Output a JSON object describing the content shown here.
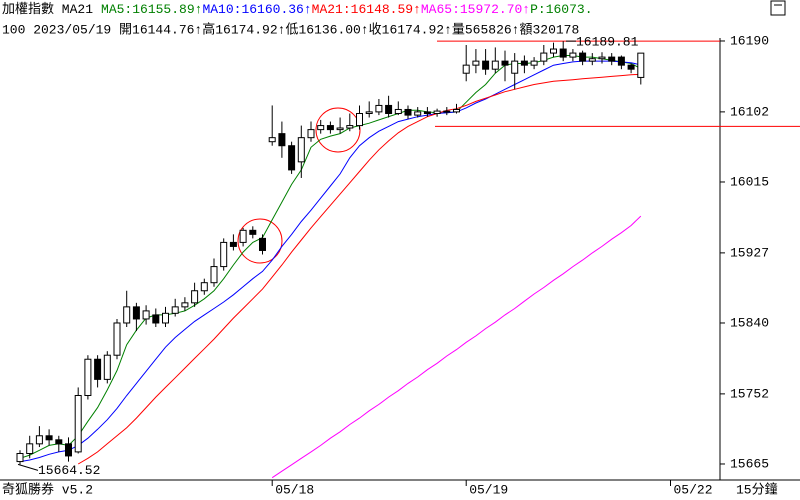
{
  "chart_data": {
    "type": "candlestick",
    "title": "加權指數 MA21",
    "indicators": [
      {
        "text": "MA5:16155.89↑",
        "color": "#008000"
      },
      {
        "text": "MA10:16160.36↑",
        "color": "#0000ff"
      },
      {
        "text": "MA21:16148.59↑",
        "color": "#ff0000"
      },
      {
        "text": "MA65:15972.70↑",
        "color": "#ff00ff"
      },
      {
        "text": "P:16073.",
        "color": "#008000"
      }
    ],
    "info": "100 2023/05/19 開16144.76↑高16174.92↑低16136.00↑收16174.92↑量565826↑額320178",
    "footer_left": "奇狐勝券 v5.2",
    "footer_right": "15分鐘",
    "x_end_label": "05/22",
    "categories": [
      null,
      null,
      null,
      null,
      null,
      null,
      null,
      null,
      null,
      null,
      null,
      null,
      null,
      null,
      null,
      null,
      null,
      null,
      null,
      null,
      null,
      null,
      null,
      null,
      null,
      null,
      "05/18",
      null,
      null,
      null,
      null,
      null,
      null,
      null,
      null,
      null,
      null,
      null,
      null,
      null,
      null,
      null,
      null,
      null,
      null,
      null,
      "05/19",
      null,
      null,
      null,
      null,
      null,
      null,
      null,
      null,
      null,
      null,
      null,
      null,
      null,
      null,
      null,
      null,
      null,
      null
    ],
    "open": [
      15668,
      15678,
      15690,
      15700,
      15695,
      15690,
      15680,
      15750,
      15795,
      15770,
      15800,
      15840,
      15860,
      15845,
      15850,
      15840,
      15852,
      15860,
      15865,
      15880,
      15890,
      15910,
      15940,
      15940,
      15955,
      15945,
      16065,
      16075,
      16060,
      16040,
      16070,
      16080,
      16085,
      16080,
      16082,
      16085,
      16100,
      16102,
      16110,
      16100,
      16105,
      16098,
      16102,
      16100,
      16103,
      16102,
      16150,
      16160,
      16165,
      16155,
      16165,
      16150,
      16165,
      16160,
      16165,
      16175,
      16180,
      16170,
      16175,
      16165,
      16168,
      16170,
      16170,
      16160,
      16144.76
    ],
    "high": [
      15682,
      15700,
      15712,
      15708,
      15700,
      15698,
      15760,
      15800,
      15800,
      15805,
      15845,
      15880,
      15865,
      15862,
      15858,
      15860,
      15870,
      15872,
      15890,
      15895,
      15920,
      15945,
      15950,
      15958,
      15960,
      15950,
      16110,
      16090,
      16065,
      16085,
      16090,
      16092,
      16090,
      16095,
      16100,
      16110,
      16115,
      16118,
      16122,
      16115,
      16110,
      16108,
      16108,
      16106,
      16108,
      16112,
      16185,
      16180,
      16180,
      16182,
      16178,
      16175,
      16172,
      16170,
      16185,
      16188,
      16189.81,
      16180,
      16178,
      16175,
      16176,
      16175,
      16172,
      16162,
      16174.92
    ],
    "low": [
      15664.52,
      15672,
      15686,
      15688,
      15680,
      15668,
      15678,
      15745,
      15760,
      15765,
      15795,
      15835,
      15830,
      15838,
      15835,
      15835,
      15848,
      15855,
      15860,
      15875,
      15885,
      15905,
      15930,
      15935,
      15945,
      15925,
      16060,
      16045,
      16025,
      16020,
      16065,
      16075,
      16075,
      16075,
      16078,
      16080,
      16095,
      16098,
      16095,
      16098,
      16093,
      16095,
      16096,
      16096,
      16098,
      16100,
      16140,
      16150,
      16148,
      16150,
      16140,
      16130,
      16150,
      16155,
      16160,
      16170,
      16165,
      16165,
      16160,
      16160,
      16162,
      16160,
      16155,
      16150,
      16136
    ],
    "close": [
      15678,
      15690,
      15700,
      15695,
      15690,
      15675,
      15750,
      15795,
      15770,
      15800,
      15840,
      15860,
      15845,
      15855,
      15840,
      15852,
      15860,
      15865,
      15880,
      15890,
      15910,
      15940,
      15935,
      15955,
      15950,
      15930,
      16070,
      16060,
      16030,
      16070,
      16080,
      16085,
      16080,
      16082,
      16085,
      16100,
      16102,
      16110,
      16100,
      16105,
      16098,
      16102,
      16100,
      16103,
      16102,
      16105,
      16160,
      16165,
      16155,
      16165,
      16160,
      16165,
      16160,
      16165,
      16175,
      16180,
      16170,
      16175,
      16165,
      16168,
      16170,
      16165,
      16160,
      16155,
      16174.92
    ],
    "series": [
      {
        "name": "MA5",
        "color": "#008000",
        "values": [
          15672,
          15676,
          15682,
          15688,
          15690,
          15688,
          15700,
          15718,
          15735,
          15757,
          15781,
          15813,
          15831,
          15846,
          15850,
          15850,
          15852,
          15855,
          15862,
          15870,
          15880,
          15895,
          15912,
          15928,
          15940,
          15946,
          15968,
          15990,
          16012,
          16030,
          16058,
          16068,
          16072,
          16075,
          16082,
          16085,
          16088,
          16092,
          16096,
          16100,
          16104,
          16104,
          16102,
          16101,
          16101,
          16102,
          16114,
          16126,
          16136,
          16150,
          16160,
          16162,
          16162,
          16163,
          16166,
          16170,
          16172,
          16172,
          16170,
          16170,
          16168,
          16166,
          16164,
          16162,
          16155.89
        ]
      },
      {
        "name": "MA10",
        "color": "#0000ff",
        "values": [
          15668,
          15670,
          15673,
          15677,
          15680,
          15682,
          15688,
          15697,
          15708,
          15720,
          15734,
          15750,
          15765,
          15780,
          15795,
          15810,
          15822,
          15832,
          15842,
          15850,
          15858,
          15866,
          15875,
          15885,
          15895,
          15904,
          15918,
          15935,
          15950,
          15966,
          15980,
          15995,
          16010,
          16025,
          16045,
          16060,
          16070,
          16078,
          16084,
          16090,
          16093,
          16096,
          16098,
          16100,
          16101,
          16102,
          16107,
          16113,
          16118,
          16124,
          16130,
          16136,
          16142,
          16148,
          16154,
          16160,
          16162,
          16164,
          16165,
          16165,
          16165,
          16165,
          16164,
          16163,
          16160.36
        ]
      },
      {
        "name": "MA21",
        "color": "#ff0000",
        "values": [
          null,
          null,
          null,
          null,
          null,
          null,
          15665,
          15672,
          15680,
          15690,
          15700,
          15710,
          15722,
          15735,
          15748,
          15760,
          15772,
          15784,
          15796,
          15808,
          15820,
          15833,
          15846,
          15858,
          15870,
          15882,
          15897,
          15912,
          15928,
          15943,
          15958,
          15972,
          15986,
          16000,
          16014,
          16028,
          16042,
          16055,
          16066,
          16076,
          16084,
          16090,
          16096,
          16100,
          16104,
          16106,
          16110,
          16115,
          16119,
          16123,
          16127,
          16130,
          16133,
          16136,
          16138,
          16140,
          16141,
          16142,
          16143,
          16144,
          16145,
          16146,
          16147,
          16148,
          16148.59
        ]
      },
      {
        "name": "MA65",
        "color": "#ff00ff",
        "values": [
          null,
          null,
          null,
          null,
          null,
          null,
          null,
          null,
          null,
          null,
          null,
          null,
          null,
          null,
          null,
          null,
          null,
          null,
          null,
          null,
          null,
          null,
          null,
          null,
          null,
          null,
          15648,
          15656,
          15664,
          15672,
          15680,
          15688,
          15697,
          15705,
          15714,
          15722,
          15731,
          15739,
          15748,
          15756,
          15765,
          15773,
          15782,
          15790,
          15799,
          15807,
          15816,
          15824,
          15833,
          15841,
          15850,
          15858,
          15867,
          15876,
          15884,
          15893,
          15901,
          15910,
          15918,
          15927,
          15935,
          15944,
          15952,
          15961,
          15972.7
        ]
      }
    ],
    "ylim": [
      15647.6,
      16193.7
    ],
    "yticks": [
      16190,
      16102,
      16015,
      15927,
      15840,
      15752,
      15665
    ],
    "reference_lines": [
      16189.81,
      16084
    ],
    "annotations": [
      {
        "label": "16189.81",
        "value": 16189.81
      },
      {
        "label": "15664.52",
        "value": 15664.52
      }
    ]
  }
}
